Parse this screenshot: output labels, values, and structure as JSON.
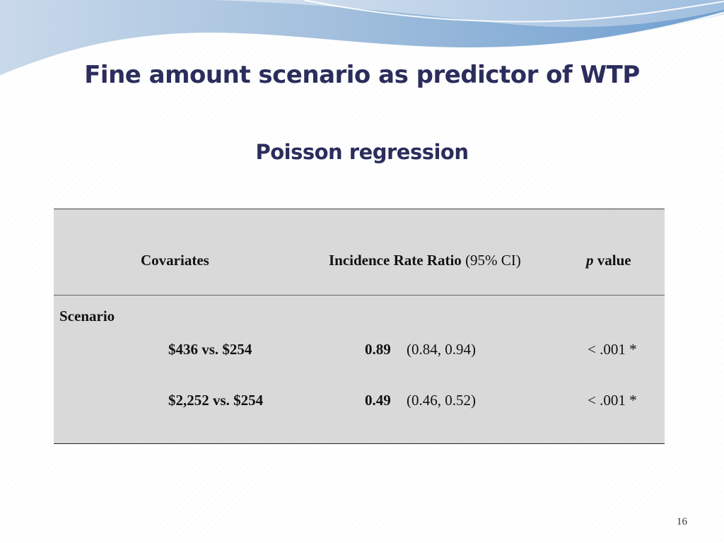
{
  "slide": {
    "title": "Fine amount scenario as predictor of WTP",
    "subtitle": "Poisson regression",
    "page_number": "16"
  },
  "table": {
    "headers": {
      "covariates": "Covariates",
      "irr_bold": "Incidence Rate Ratio",
      "irr_ci": "(95% CI)",
      "p_italic": "p",
      "p_rest": "value"
    },
    "group_label": "Scenario",
    "rows": [
      {
        "label": "$436 vs. $254",
        "irr": "0.89",
        "ci": "(0.84, 0.94)",
        "p": "< .001 *"
      },
      {
        "label": "$2,252 vs. $254",
        "irr": "0.49",
        "ci": "(0.46, 0.52)",
        "p": "< .001 *"
      }
    ]
  },
  "colors": {
    "title": "#2b2d5c",
    "table_background": "#d9d9d9",
    "wave_light": "#bcd0e6",
    "wave_blue": "#7fa8d6"
  }
}
